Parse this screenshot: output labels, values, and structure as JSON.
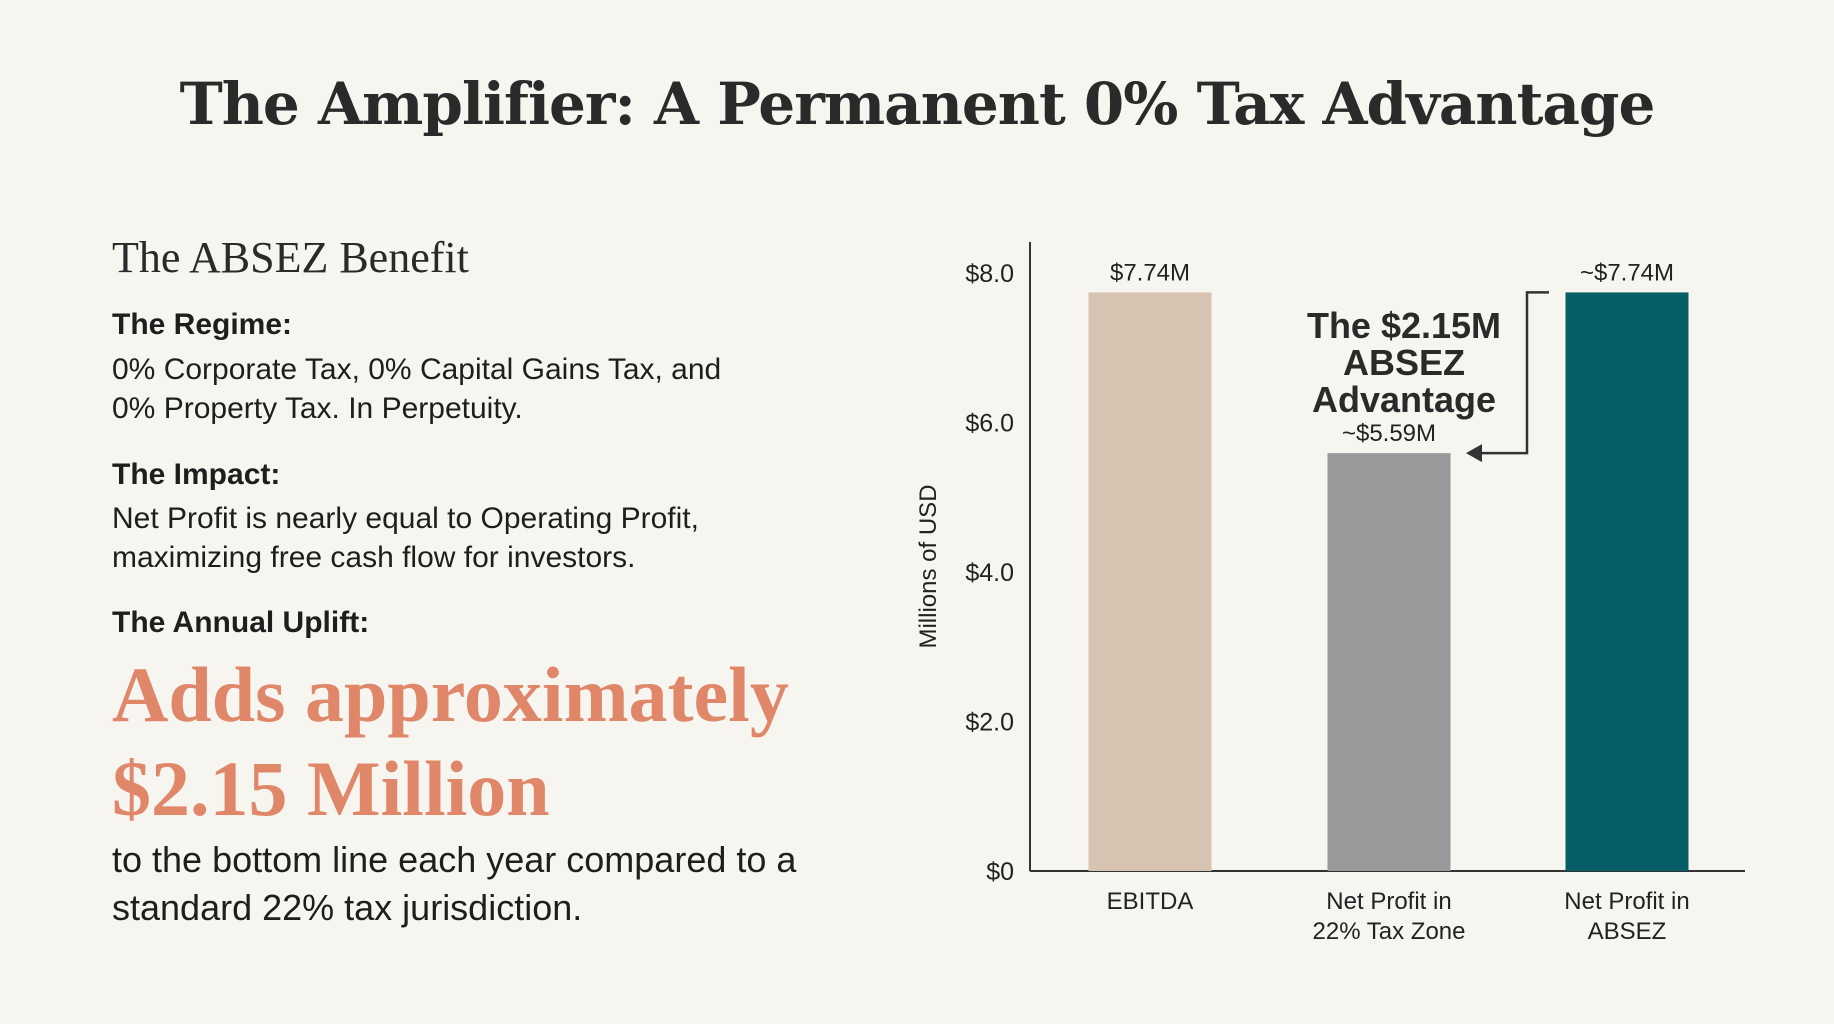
{
  "title": "The Amplifier: A Permanent 0% Tax Advantage",
  "left": {
    "heading": "The ABSEZ Benefit",
    "regime_label": "The Regime:",
    "regime_text": "0% Corporate Tax, 0% Capital Gains Tax, and 0% Property Tax. In Perpetuity.",
    "impact_label": "The Impact:",
    "impact_text": "Net Profit is nearly equal to Operating Profit, maximizing free cash flow for investors.",
    "uplift_label": "The Annual Uplift:",
    "uplift_big_1": "Adds approximately",
    "uplift_big_2": "$2.15 Million",
    "uplift_text": "to the bottom line each year compared to a standard 22% tax jurisdiction."
  },
  "chart_data": {
    "type": "bar",
    "title": "",
    "xlabel": "",
    "ylabel": "Millions of USD",
    "ylim": [
      0,
      8
    ],
    "yticks": [
      0,
      2,
      4,
      6,
      8
    ],
    "ytick_labels": [
      "$0",
      "$2.0",
      "$4.0",
      "$6.0",
      "$8.0"
    ],
    "grid": false,
    "categories": [
      [
        "EBITDA"
      ],
      [
        "Net Profit in",
        "22% Tax Zone"
      ],
      [
        "Net Profit in",
        "ABSEZ"
      ]
    ],
    "values": [
      7.74,
      5.59,
      7.74
    ],
    "data_labels": [
      "$7.74M",
      "~$5.59M",
      "~$7.74M"
    ],
    "colors": [
      "#d7c3b1",
      "#999999",
      "#075e66"
    ],
    "annotation": {
      "lines": [
        "The $2.15M",
        "ABSEZ",
        "Advantage"
      ],
      "from_category": 2,
      "to_category": 1
    }
  }
}
